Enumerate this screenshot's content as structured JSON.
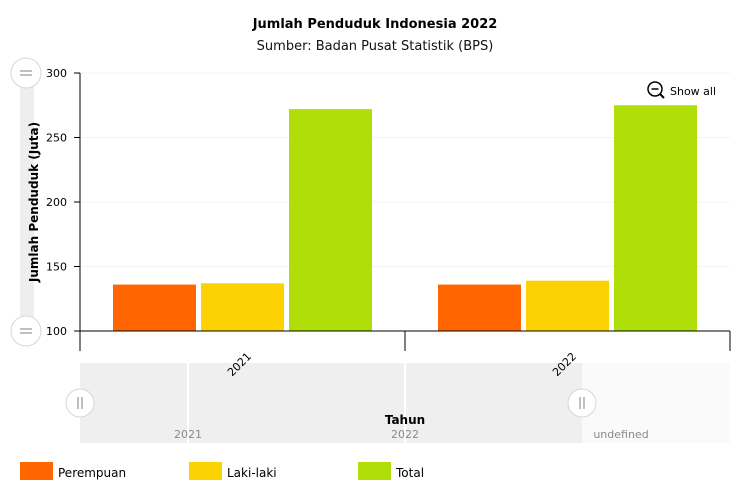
{
  "chart_data": {
    "type": "bar",
    "title": "Jumlah Penduduk Indonesia 2022",
    "subtitle": "Sumber: Badan Pusat Statistik (BPS)",
    "xlabel": "Tahun",
    "ylabel": "Jumlah Penduduk (Juta)",
    "categories": [
      "2021",
      "2022"
    ],
    "ylim": [
      100,
      300
    ],
    "yticks": [
      "100",
      "150",
      "200",
      "250",
      "300"
    ],
    "series": [
      {
        "name": "Perempuan",
        "color": "#ff6600",
        "values": [
          136,
          136
        ]
      },
      {
        "name": "Laki-laki",
        "color": "#fcd202",
        "values": [
          137,
          139
        ]
      },
      {
        "name": "Total",
        "color": "#b0de09",
        "values": [
          272,
          275
        ]
      }
    ],
    "legend_position": "bottom",
    "grid": true
  },
  "controls": {
    "show_all": "Show all",
    "scrollbar_labels": [
      "2021",
      "2022",
      "undefined"
    ]
  }
}
